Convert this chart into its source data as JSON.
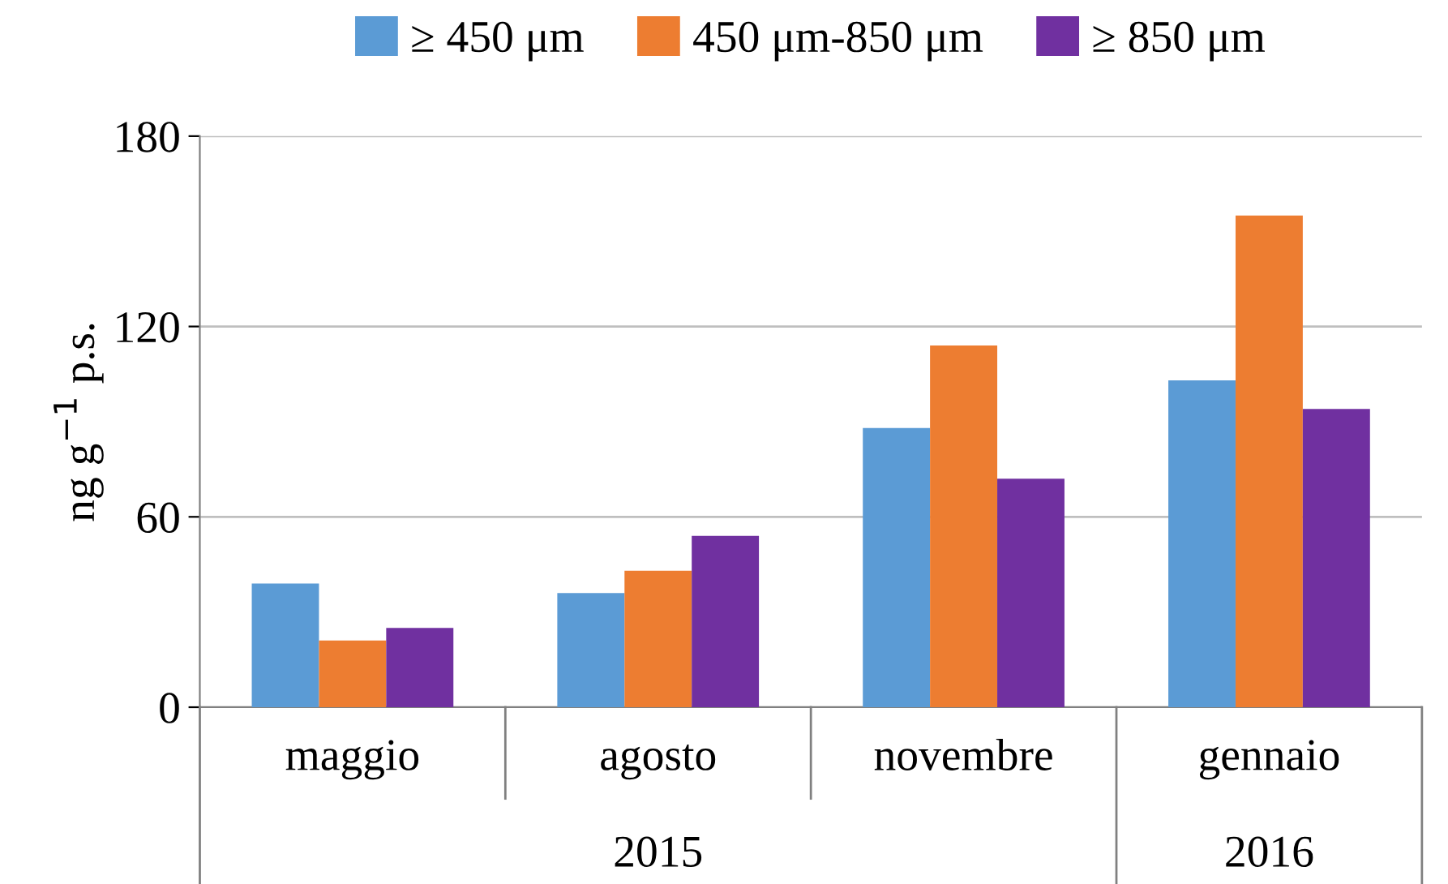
{
  "chart_data": {
    "type": "bar",
    "ylabel": "ng g$^{−1}$ p.s.",
    "categories": [
      "maggio",
      "agosto",
      "novembre",
      "gennaio"
    ],
    "series": [
      {
        "name": "≥ 450 μm",
        "color": "#5b9bd5",
        "values": [
          39,
          36,
          88,
          103
        ]
      },
      {
        "name": "450 μm-850 μm",
        "color": "#ed7d31",
        "values": [
          21,
          43,
          114,
          155
        ]
      },
      {
        "name": "≥ 850 μm",
        "color": "#7030a0",
        "values": [
          25,
          54,
          72,
          94
        ]
      }
    ],
    "ylim": [
      0,
      180
    ],
    "yticks": [
      0,
      60,
      120,
      180
    ],
    "grid": "y",
    "legend": "top",
    "annotations": [
      "2015",
      "2016"
    ]
  }
}
